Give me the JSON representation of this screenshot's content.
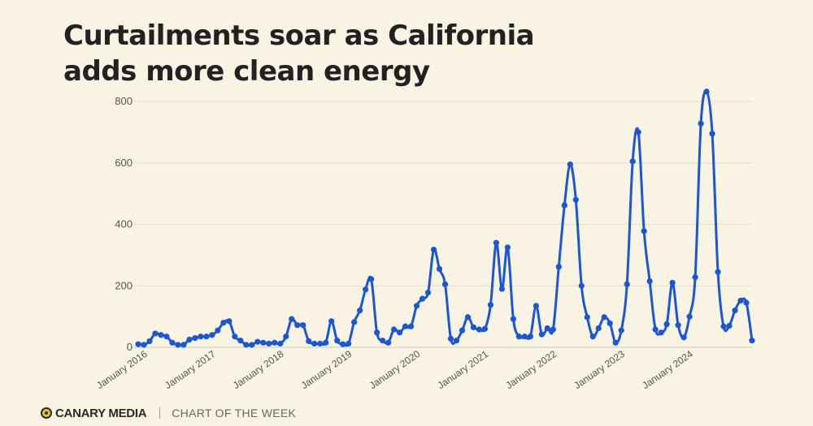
{
  "header": {
    "title_line1": "Curtailments soar as California",
    "title_line2": "adds more clean energy"
  },
  "footer": {
    "brand": "CANARY MEDIA",
    "series": "CHART OF THE WEEK"
  },
  "colors": {
    "background": "#f8f3e3",
    "line": "#1a56d6",
    "grid": "#e6e0cf",
    "logo_yellow": "#e8c230"
  },
  "chart_data": {
    "type": "line",
    "title": "Curtailments soar as California adds more clean energy",
    "xlabel": "",
    "ylabel": "",
    "ylim": [
      0,
      800
    ],
    "yticks": [
      0,
      200,
      400,
      600,
      800
    ],
    "xtick_labels": [
      "January 2016",
      "January 2017",
      "January 2018",
      "January 2019",
      "January 2020",
      "January 2021",
      "January 2022",
      "January 2023",
      "January 2024"
    ],
    "start": "January 2016",
    "interval": "monthly",
    "series": [
      {
        "name": "Curtailment",
        "values": [
          10,
          8,
          20,
          45,
          40,
          35,
          15,
          8,
          8,
          25,
          30,
          35,
          35,
          40,
          55,
          80,
          85,
          35,
          22,
          8,
          8,
          18,
          15,
          12,
          15,
          12,
          35,
          92,
          72,
          72,
          20,
          12,
          12,
          15,
          85,
          22,
          10,
          12,
          82,
          120,
          188,
          222,
          48,
          22,
          15,
          58,
          48,
          68,
          68,
          135,
          158,
          178,
          318,
          255,
          205,
          28,
          22,
          55,
          98,
          65,
          58,
          60,
          138,
          340,
          190,
          325,
          92,
          35,
          35,
          35,
          135,
          42,
          62,
          58,
          262,
          462,
          595,
          480,
          200,
          98,
          35,
          62,
          98,
          78,
          15,
          55,
          205,
          605,
          700,
          378,
          215,
          58,
          48,
          75,
          210,
          72,
          32,
          100,
          228,
          728,
          832,
          695,
          245,
          68,
          70,
          120,
          152,
          145,
          22
        ]
      }
    ]
  }
}
